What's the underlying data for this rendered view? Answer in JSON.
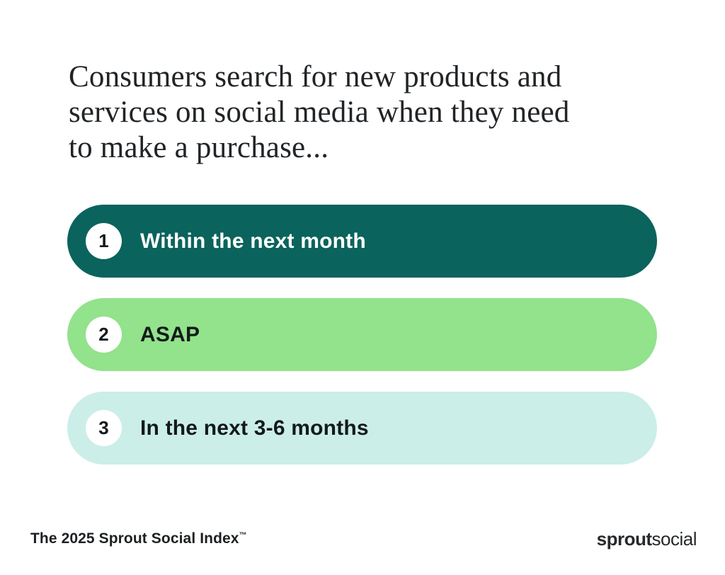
{
  "title_lines": [
    "Consumers search for new products and",
    "services on social media when they need",
    "to make a purchase..."
  ],
  "items": [
    {
      "rank": "1",
      "label": "Within the next month",
      "bg": "#0a635c",
      "text_color": "#ffffff"
    },
    {
      "rank": "2",
      "label": "ASAP",
      "bg": "#93e28c",
      "text_color": "#131a1a"
    },
    {
      "rank": "3",
      "label": "In the next 3-6 months",
      "bg": "#cceee8",
      "text_color": "#131a1a"
    }
  ],
  "footer": {
    "source": "The 2025 Sprout Social Index",
    "trademark": "™",
    "logo_bold": "sprout",
    "logo_regular": "social"
  },
  "colors": {
    "title_text": "#212427",
    "footer_text": "#1d2022",
    "logo_text": "#26292c",
    "circle_bg": "#ffffff",
    "circle_number": "#15191c",
    "background": "#ffffff"
  },
  "chart_data": {
    "type": "bar",
    "title": "Consumers search for new products and services on social media when they need to make a purchase...",
    "categories": [
      "Within the next month",
      "ASAP",
      "In the next 3-6 months"
    ],
    "ranks": [
      1,
      2,
      3
    ],
    "series": [],
    "legend": "none",
    "notes_visible_on_screen": "ranked equal-length pill bars, no numeric values displayed",
    "bar_colors": [
      "#0a635c",
      "#93e28c",
      "#cceee8"
    ],
    "source_label": "The 2025 Sprout Social Index™"
  }
}
